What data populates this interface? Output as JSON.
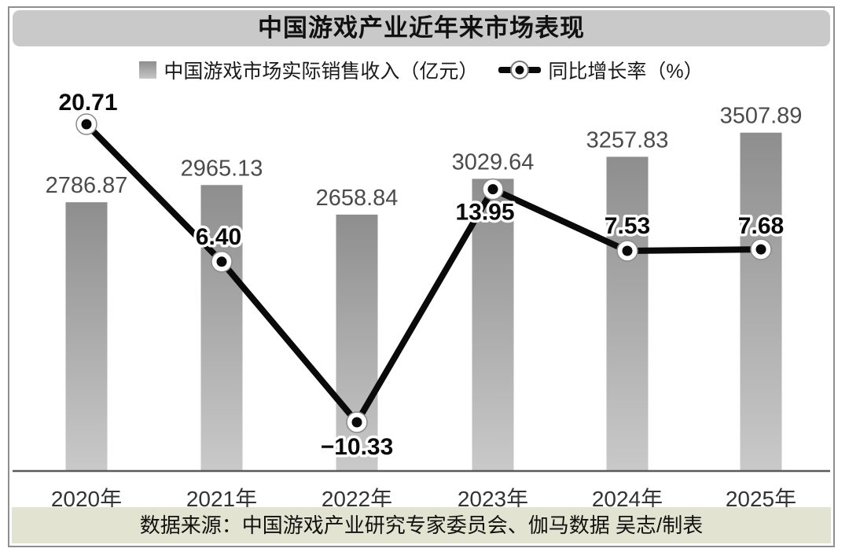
{
  "title": "中国游戏产业近年来市场表现",
  "legend": {
    "revenue_label": "中国游戏市场实际销售收入（亿元）",
    "growth_label": "同比增长率（%）"
  },
  "source_note": "数据来源：中国游戏产业研究专家委员会、伽马数据 吴志/制表",
  "colors": {
    "title_bar_bg": "#c9c9c9",
    "frame_border": "#8f8f8f",
    "bar_gradient_top": "#8e8e8e",
    "bar_gradient_bottom": "#c9c9c9",
    "bar_value_label": "#4b4b4b",
    "line": "#0a0a0a",
    "axis": "#5a5a5a",
    "year_label": "#333333",
    "source_bar_bg": "#e3e3d1"
  },
  "chart_data": {
    "type": "bar+line",
    "title": "中国游戏产业近年来市场表现",
    "categories": [
      "2020年",
      "2021年",
      "2022年",
      "2023年",
      "2024年",
      "2025年"
    ],
    "series": [
      {
        "name": "中国游戏市场实际销售收入（亿元）",
        "type": "bar",
        "values": [
          2786.87,
          2965.13,
          2658.84,
          3029.64,
          3257.83,
          3507.89
        ],
        "labels": [
          "2786.87",
          "2965.13",
          "2658.84",
          "3029.64",
          "3257.83",
          "3507.89"
        ]
      },
      {
        "name": "同比增长率（%）",
        "type": "line",
        "values": [
          20.71,
          6.4,
          -10.33,
          13.95,
          7.53,
          7.68
        ],
        "labels": [
          "20.71",
          "6.40",
          "−10.33",
          "13.95",
          "7.53",
          "7.68"
        ]
      }
    ],
    "legend_position": "top",
    "grid": false,
    "annotations": "数据来源：中国游戏产业研究专家委员会、伽马数据 吴志/制表"
  }
}
